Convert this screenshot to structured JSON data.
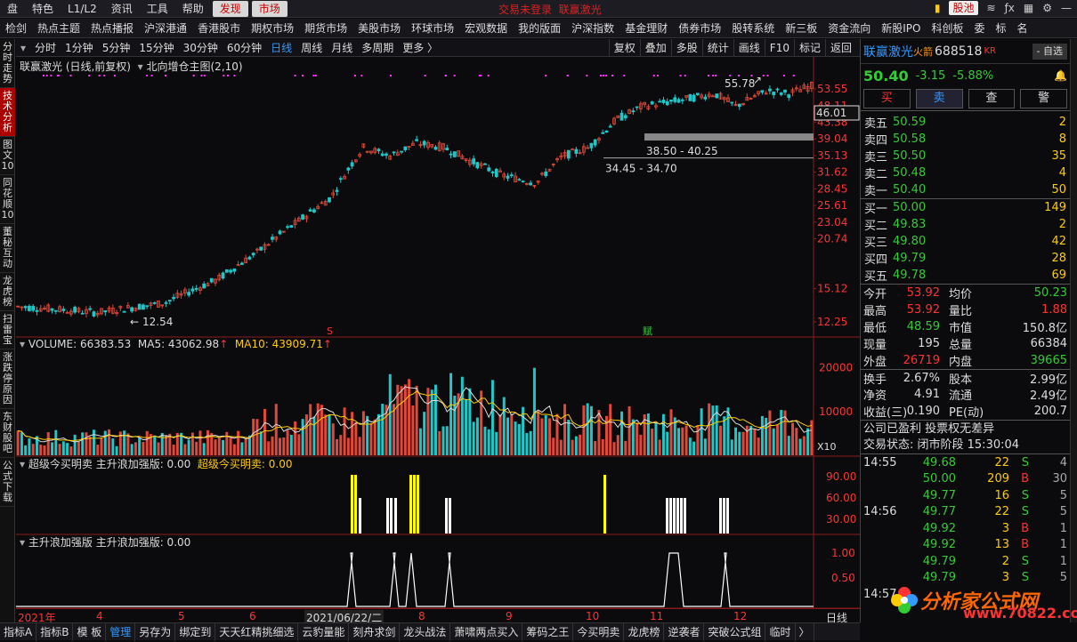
{
  "topbar": {
    "menus": [
      "盘",
      "特色",
      "L1/L2",
      "资讯",
      "工具",
      "帮助"
    ],
    "active_menus": [
      "发现",
      "市场"
    ],
    "center": [
      "交易未登录",
      "联赢激光"
    ],
    "pool": "股池"
  },
  "navbar": [
    "检剑",
    "热点主题",
    "热点播报",
    "沪深港通",
    "香港股市",
    "期权市场",
    "期货市场",
    "美股市场",
    "环球市场",
    "宏观数据",
    "我的版面",
    "沪深指数",
    "基金理财",
    "债券市场",
    "股转系统",
    "新三板",
    "资金流向",
    "新股IPO",
    "科创板",
    "委",
    "标",
    "名"
  ],
  "lefttabs": [
    "分时走势",
    "技术分析",
    "图文10",
    "同花顺10",
    "董秘互动",
    "龙虎榜",
    "扫雷宝",
    "涨跌停原因",
    "东财股吧",
    "公式下载"
  ],
  "period": {
    "items": [
      "分时",
      "1分钟",
      "5分钟",
      "15分钟",
      "30分钟",
      "60分钟",
      "日线",
      "周线",
      "月线",
      "多周期",
      "更多 〉"
    ],
    "active": "日线",
    "right": [
      "复权",
      "叠加",
      "多股",
      "统计",
      "画线",
      "F10",
      "标记",
      "返回"
    ]
  },
  "main": {
    "title": "联赢激光 (日线,前复权)",
    "indicator": "北向增仓主图(2,10)",
    "price_ticks": [
      "53.55",
      "48.11",
      "43.38",
      "39.04",
      "35.13",
      "31.62",
      "28.45",
      "25.61",
      "23.04",
      "20.74",
      "18.67",
      "15.12",
      "12.25"
    ],
    "current_tag": "46.01",
    "hi_label": "55.78",
    "lo_label": "12.54",
    "band1": "38.50 - 40.25",
    "band2": "34.45 - 34.70",
    "buy_mark": "S",
    "sell_mark": "赋"
  },
  "volume": {
    "label": "VOLUME: 66383.53",
    "ma5": "MA5: 43062.98",
    "ma10": "MA10: 43909.71",
    "ticks": [
      "20000",
      "10000"
    ],
    "unit": "X10"
  },
  "ind1": {
    "name": "超级今买明卖",
    "sub": "主升浪加强版: 0.00",
    "val": "超级今买明卖: 0.00",
    "ticks": [
      "90.00",
      "60.00",
      "30.00"
    ]
  },
  "ind2": {
    "name": "主升浪加强版",
    "sub": "主升浪加强版: 0.00",
    "ticks": [
      "1.00",
      "0.50"
    ]
  },
  "xaxis": {
    "labels": [
      "2021年",
      "4",
      "5",
      "6",
      "2021/06/22/二",
      "8",
      "9",
      "10",
      "11",
      "12"
    ],
    "right": "日线"
  },
  "bottombar": [
    "指标A",
    "指标B",
    "模 板",
    "管理",
    "另存为",
    "绑定到",
    "天天红精挑细选",
    "云豹量能",
    "刻舟求剑",
    "龙头战法",
    "萧啸两点买入",
    "筹码之王",
    "今买明卖",
    "龙虎榜",
    "逆袭者",
    "突破公式组",
    "临时",
    "〉"
  ],
  "bottom_active": "管理",
  "quote": {
    "name": "联赢激光",
    "tag": "火箭",
    "code": "688518",
    "kr": "KR",
    "pick": "- 自选",
    "price": "50.40",
    "chg": "-3.15",
    "pct": "-5.88%",
    "buttons": [
      "买",
      "卖",
      "查",
      "警"
    ],
    "asks": [
      [
        "卖五",
        "50.59",
        "2"
      ],
      [
        "卖四",
        "50.58",
        "8"
      ],
      [
        "卖三",
        "50.50",
        "35"
      ],
      [
        "卖二",
        "50.48",
        "4"
      ],
      [
        "卖一",
        "50.40",
        "50"
      ]
    ],
    "bids": [
      [
        "买一",
        "50.00",
        "149"
      ],
      [
        "买二",
        "49.83",
        "2"
      ],
      [
        "买三",
        "49.80",
        "42"
      ],
      [
        "买四",
        "49.79",
        "28"
      ],
      [
        "买五",
        "49.78",
        "69"
      ]
    ],
    "stats": [
      [
        "今开",
        "53.92",
        "均价",
        "50.23"
      ],
      [
        "最高",
        "53.92",
        "量比",
        "1.88"
      ],
      [
        "最低",
        "48.59",
        "市值",
        "150.8亿"
      ],
      [
        "现量",
        "195",
        "总量",
        "66384"
      ],
      [
        "外盘",
        "26719",
        "内盘",
        "39665"
      ],
      [
        "换手",
        "2.67%",
        "股本",
        "2.99亿"
      ],
      [
        "净资",
        "4.91",
        "流通",
        "2.49亿"
      ],
      [
        "收益(三)",
        "0.190",
        "PE(动)",
        "200.7"
      ]
    ],
    "note": "公司已盈利 投票权无差异",
    "status": "交易状态: 闭市阶段 15:30:04",
    "ticks": [
      [
        "14:55",
        "49.68",
        "22",
        "S",
        "4"
      ],
      [
        "",
        "50.00",
        "209",
        "B",
        "30"
      ],
      [
        "",
        "49.77",
        "16",
        "S",
        "5"
      ],
      [
        "14:56",
        "49.77",
        "22",
        "S",
        "5"
      ],
      [
        "",
        "49.92",
        "3",
        "B",
        "1"
      ],
      [
        "",
        "49.92",
        "13",
        "B",
        "1"
      ],
      [
        "",
        "49.79",
        "2",
        "S",
        "1"
      ],
      [
        "",
        "49.79",
        "3",
        "S",
        "5"
      ],
      [
        "14:57",
        "",
        "",
        " ",
        ""
      ]
    ]
  },
  "logo": {
    "text": "分析家公式网",
    "url": "www.70822.com"
  }
}
